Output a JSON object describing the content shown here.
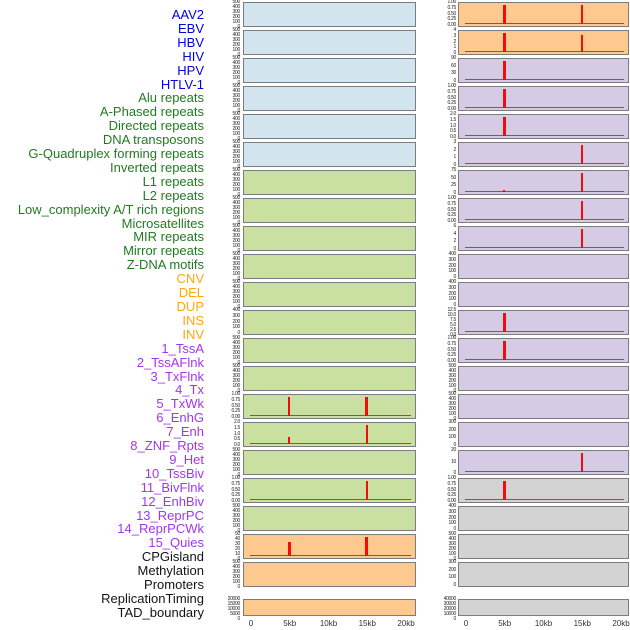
{
  "chart_data": {
    "type": "line",
    "title": "",
    "description": "Small-multiple enrichment tracks around integration sites; red spikes at 5kb and 15kb over a flat red baseline",
    "x_axis": {
      "tick_labels": [
        "0",
        "5kb",
        "10kb",
        "15kb",
        "20kb"
      ],
      "tick_kb": [
        0,
        5,
        10,
        15,
        20
      ],
      "range_kb": [
        0,
        20
      ]
    },
    "layout_hint": {
      "columns": 2,
      "tracks_per_column": 22,
      "order": "column-major"
    },
    "colors": {
      "spike": "#f40b0b",
      "baseline": "#d03434",
      "panel_border": "#7c7c7c",
      "groups": {
        "virus": {
          "label": "#0000e6",
          "panel": "#d2e4ee"
        },
        "repeat": {
          "label": "#227a22",
          "panel": "#c9e0a1"
        },
        "sv": {
          "label": "#ffa60f",
          "panel": "#fdc98f"
        },
        "chromhmm": {
          "label": "#a335f0",
          "panel": "#d6cbe4"
        },
        "other": {
          "label": "#141414",
          "panel": "#d3d3d3"
        }
      }
    },
    "tracks": [
      {
        "label": "AAV2",
        "group": "virus",
        "yticks": [
          "500",
          "400",
          "300",
          "200",
          "100",
          "0"
        ],
        "spikes": [],
        "baseline": false
      },
      {
        "label": "EBV",
        "group": "virus",
        "yticks": [
          "500",
          "400",
          "300",
          "200",
          "100",
          "0"
        ],
        "spikes": [],
        "baseline": false
      },
      {
        "label": "HBV",
        "group": "virus",
        "yticks": [
          "500",
          "400",
          "300",
          "200",
          "100",
          "0"
        ],
        "spikes": [],
        "baseline": false
      },
      {
        "label": "HIV",
        "group": "virus",
        "yticks": [
          "500",
          "400",
          "300",
          "200",
          "100",
          "0"
        ],
        "spikes": [],
        "baseline": false
      },
      {
        "label": "HPV",
        "group": "virus",
        "yticks": [
          "500",
          "400",
          "300",
          "200",
          "100",
          "0"
        ],
        "spikes": [],
        "baseline": false
      },
      {
        "label": "HTLV-1",
        "group": "virus",
        "yticks": [
          "500",
          "400",
          "300",
          "200",
          "100",
          "0"
        ],
        "spikes": [],
        "baseline": false
      },
      {
        "label": "Alu repeats",
        "group": "repeat",
        "yticks": [
          "500",
          "400",
          "300",
          "200",
          "100",
          "0"
        ],
        "spikes": [],
        "baseline": false
      },
      {
        "label": "A-Phased repeats",
        "group": "repeat",
        "yticks": [
          "500",
          "400",
          "300",
          "200",
          "100",
          "0"
        ],
        "spikes": [],
        "baseline": false
      },
      {
        "label": "Directed repeats",
        "group": "repeat",
        "yticks": [
          "500",
          "400",
          "300",
          "200",
          "100",
          "0"
        ],
        "spikes": [],
        "baseline": false
      },
      {
        "label": "DNA transposons",
        "group": "repeat",
        "yticks": [
          "500",
          "400",
          "300",
          "200",
          "100",
          "0"
        ],
        "spikes": [],
        "baseline": false
      },
      {
        "label": "G-Quadruplex forming repeats",
        "group": "repeat",
        "yticks": [
          "500",
          "400",
          "300",
          "200",
          "100",
          "0"
        ],
        "spikes": [],
        "baseline": false
      },
      {
        "label": "Inverted repeats",
        "group": "repeat",
        "yticks": [
          "400",
          "300",
          "200",
          "100",
          "0"
        ],
        "spikes": [],
        "baseline": false
      },
      {
        "label": "L1 repeats",
        "group": "repeat",
        "yticks": [
          "500",
          "400",
          "300",
          "200",
          "100",
          "0"
        ],
        "spikes": [],
        "baseline": false
      },
      {
        "label": "L2 repeats",
        "group": "repeat",
        "yticks": [
          "500",
          "400",
          "300",
          "200",
          "100",
          "0"
        ],
        "spikes": [],
        "baseline": false
      },
      {
        "label": "Low_complexity A/T rich regions",
        "group": "repeat",
        "yticks": [
          "1.00",
          "0.75",
          "0.50",
          "0.25",
          "0.00"
        ],
        "spikes": [
          {
            "kb": 5,
            "frac": 1,
            "w": 2
          },
          {
            "kb": 15,
            "frac": 1,
            "w": 3
          }
        ],
        "baseline": true
      },
      {
        "label": "Microsatellites",
        "group": "repeat",
        "yticks": [
          "2.0",
          "1.5",
          "1.0",
          "0.5",
          "0.0"
        ],
        "spikes": [
          {
            "kb": 5,
            "frac": 0.35,
            "w": 2
          },
          {
            "kb": 15,
            "frac": 1,
            "w": 2.5
          }
        ],
        "baseline": true
      },
      {
        "label": "MIR repeats",
        "group": "repeat",
        "yticks": [
          "500",
          "400",
          "300",
          "200",
          "100",
          "0"
        ],
        "spikes": [],
        "baseline": false
      },
      {
        "label": "Mirror repeats",
        "group": "repeat",
        "yticks": [
          "1.00",
          "0.75",
          "0.50",
          "0.25",
          "0.00"
        ],
        "spikes": [
          {
            "kb": 15,
            "frac": 1,
            "w": 1.5
          }
        ],
        "baseline": true
      },
      {
        "label": "Z-DNA motifs",
        "group": "repeat",
        "yticks": [
          "500",
          "400",
          "300",
          "200",
          "100",
          "0"
        ],
        "spikes": [],
        "baseline": false
      },
      {
        "label": "CNV",
        "group": "sv",
        "yticks": [
          "50",
          "40",
          "30",
          "20",
          "10",
          "0"
        ],
        "spikes": [
          {
            "kb": 5,
            "frac": 0.72,
            "w": 3
          },
          {
            "kb": 15,
            "frac": 1,
            "w": 3
          }
        ],
        "baseline": true
      },
      {
        "label": "DEL",
        "group": "sv",
        "yticks": [
          "500",
          "400",
          "300",
          "200",
          "100",
          "0"
        ],
        "spikes": [],
        "baseline": false
      },
      {
        "label": "DUP",
        "group": "sv",
        "yticks": [
          "20000",
          "15000",
          "10000",
          "5000",
          "0"
        ],
        "spikes": [],
        "baseline": false
      },
      {
        "label": "INS",
        "group": "sv",
        "yticks": [
          "1.00",
          "0.75",
          "0.50",
          "0.25",
          "0.00"
        ],
        "spikes": [
          {
            "kb": 5,
            "frac": 1,
            "w": 3
          },
          {
            "kb": 15,
            "frac": 1,
            "w": 2
          }
        ],
        "baseline": true
      },
      {
        "label": "INV",
        "group": "sv",
        "yticks": [
          "4",
          "3",
          "2",
          "1",
          "0"
        ],
        "spikes": [
          {
            "kb": 5,
            "frac": 1,
            "w": 3
          },
          {
            "kb": 15,
            "frac": 0.85,
            "w": 2
          }
        ],
        "baseline": true
      },
      {
        "label": "1_TssA",
        "group": "chromhmm",
        "yticks": [
          "90",
          "60",
          "30",
          "0"
        ],
        "spikes": [
          {
            "kb": 5,
            "frac": 1,
            "w": 3
          }
        ],
        "baseline": true
      },
      {
        "label": "2_TssAFlnk",
        "group": "chromhmm",
        "yticks": [
          "1.00",
          "0.75",
          "0.50",
          "0.25",
          "0.00"
        ],
        "spikes": [
          {
            "kb": 5,
            "frac": 1,
            "w": 2.5
          }
        ],
        "baseline": true
      },
      {
        "label": "3_TxFlnk",
        "group": "chromhmm",
        "yticks": [
          "2.0",
          "1.5",
          "1.0",
          "0.5",
          "0.0"
        ],
        "spikes": [
          {
            "kb": 5,
            "frac": 1,
            "w": 2.5
          }
        ],
        "baseline": true
      },
      {
        "label": "4_Tx",
        "group": "chromhmm",
        "yticks": [
          "3",
          "2",
          "1",
          "0"
        ],
        "spikes": [
          {
            "kb": 15,
            "frac": 1,
            "w": 2.5
          }
        ],
        "baseline": true
      },
      {
        "label": "5_TxWk",
        "group": "chromhmm",
        "yticks": [
          "75",
          "50",
          "25",
          "0"
        ],
        "spikes": [
          {
            "kb": 5,
            "frac": 0.1,
            "w": 2
          },
          {
            "kb": 15,
            "frac": 1,
            "w": 2.5
          }
        ],
        "baseline": true
      },
      {
        "label": "6_EnhG",
        "group": "chromhmm",
        "yticks": [
          "1.00",
          "0.75",
          "0.50",
          "0.25",
          "0.00"
        ],
        "spikes": [
          {
            "kb": 15,
            "frac": 1,
            "w": 2.5
          }
        ],
        "baseline": true
      },
      {
        "label": "7_Enh",
        "group": "chromhmm",
        "yticks": [
          "6",
          "4",
          "2",
          "0"
        ],
        "spikes": [
          {
            "kb": 15,
            "frac": 1,
            "w": 2.5
          }
        ],
        "baseline": true
      },
      {
        "label": "8_ZNF_Rpts",
        "group": "chromhmm",
        "yticks": [
          "400",
          "300",
          "200",
          "100",
          "0"
        ],
        "spikes": [],
        "baseline": false
      },
      {
        "label": "9_Het",
        "group": "chromhmm",
        "yticks": [
          "400",
          "300",
          "200",
          "100",
          "0"
        ],
        "spikes": [],
        "baseline": false
      },
      {
        "label": "10_TssBiv",
        "group": "chromhmm",
        "yticks": [
          "12.5",
          "10.0",
          "7.5",
          "5.0",
          "2.5",
          "0.0"
        ],
        "spikes": [
          {
            "kb": 5,
            "frac": 1,
            "w": 3
          }
        ],
        "baseline": true
      },
      {
        "label": "11_BivFlnk",
        "group": "chromhmm",
        "yticks": [
          "1.00",
          "0.75",
          "0.50",
          "0.25",
          "0.00"
        ],
        "spikes": [
          {
            "kb": 5,
            "frac": 1,
            "w": 2.5
          }
        ],
        "baseline": true
      },
      {
        "label": "12_EnhBiv",
        "group": "chromhmm",
        "yticks": [
          "500",
          "400",
          "300",
          "200",
          "100",
          "0"
        ],
        "spikes": [],
        "baseline": false
      },
      {
        "label": "13_ReprPC",
        "group": "chromhmm",
        "yticks": [
          "500",
          "400",
          "300",
          "200",
          "100",
          "0"
        ],
        "spikes": [],
        "baseline": false
      },
      {
        "label": "14_ReprPCWk",
        "group": "chromhmm",
        "yticks": [
          "300",
          "200",
          "100",
          "0"
        ],
        "spikes": [],
        "baseline": false
      },
      {
        "label": "15_Quies",
        "group": "chromhmm",
        "yticks": [
          "20",
          "10",
          "0"
        ],
        "spikes": [
          {
            "kb": 15,
            "frac": 1,
            "w": 2.5
          }
        ],
        "baseline": true
      },
      {
        "label": "CPGisland",
        "group": "other",
        "yticks": [
          "1.00",
          "0.75",
          "0.50",
          "0.25",
          "0.00"
        ],
        "spikes": [
          {
            "kb": 5,
            "frac": 1,
            "w": 3
          }
        ],
        "baseline": true
      },
      {
        "label": "Methylation",
        "group": "other",
        "yticks": [
          "400",
          "300",
          "200",
          "100",
          "0"
        ],
        "spikes": [],
        "baseline": false
      },
      {
        "label": "Promoters",
        "group": "other",
        "yticks": [
          "500",
          "400",
          "300",
          "200",
          "100",
          "0"
        ],
        "spikes": [],
        "baseline": false
      },
      {
        "label": "ReplicationTiming",
        "group": "other",
        "yticks": [
          "300",
          "200",
          "100",
          "0"
        ],
        "spikes": [],
        "baseline": false
      },
      {
        "label": "TAD_boundary",
        "group": "other",
        "yticks": [
          "40000",
          "30000",
          "20000",
          "10000",
          "0"
        ],
        "spikes": [],
        "baseline": false
      }
    ]
  }
}
